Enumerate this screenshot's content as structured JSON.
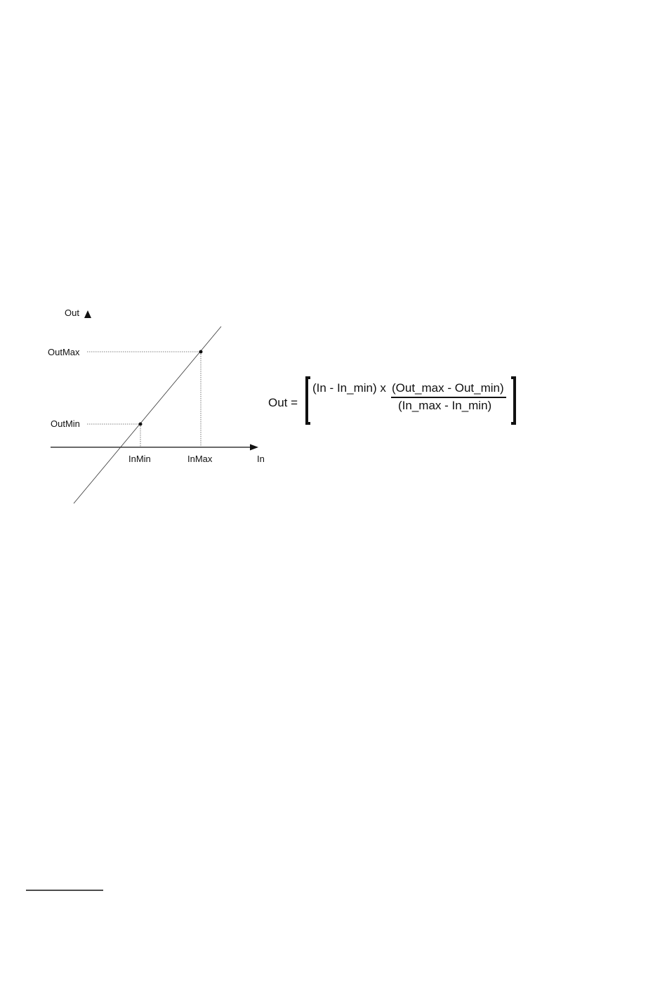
{
  "diagram": {
    "y_axis_label": "Out",
    "x_axis_label": "In",
    "y_ticks": [
      "OutMax",
      "OutMin"
    ],
    "x_ticks": [
      "InMin",
      "InMax"
    ]
  },
  "formula": {
    "lhs": "Out =",
    "numerator_left": "(In - In_min) x",
    "numerator_right": "(Out_max - Out_min)",
    "denominator": "(In_max - In_min)"
  }
}
